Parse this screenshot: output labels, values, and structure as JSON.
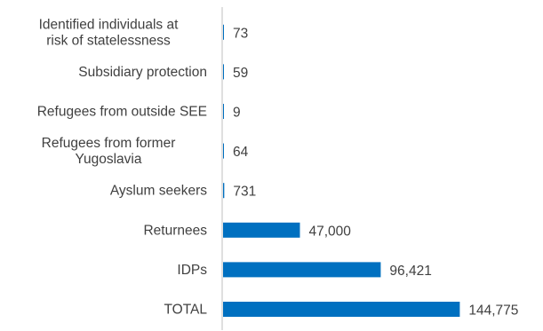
{
  "chart_data": {
    "type": "bar",
    "orientation": "horizontal",
    "categories": [
      "Identified individuals at risk of statelessness",
      "Subsidiary protection",
      "Refugees from outside SEE",
      "Refugees from former Yugoslavia",
      "Ayslum seekers",
      "Returnees",
      "IDPs",
      "TOTAL"
    ],
    "values": [
      73,
      59,
      9,
      64,
      731,
      47000,
      96421,
      144775
    ],
    "value_labels": [
      "73",
      "59",
      "9",
      "64",
      "731",
      "47,000",
      "96,421",
      "144,775"
    ],
    "xlim": [
      0,
      150000
    ],
    "grid": false,
    "legend": "none",
    "colors": {
      "bar": "#0070C0",
      "axis": "#BFBFBF",
      "text": "#404040"
    }
  }
}
